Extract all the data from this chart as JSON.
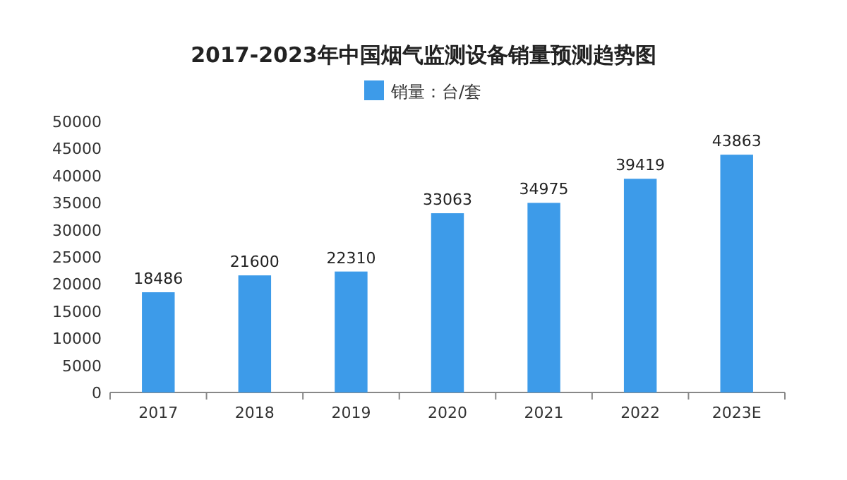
{
  "chart_data": {
    "type": "bar",
    "title": "2017-2023年中国烟气监测设备销量预测趋势图",
    "categories": [
      "2017",
      "2018",
      "2019",
      "2020",
      "2021",
      "2022",
      "2023E"
    ],
    "series": [
      {
        "name": "销量：台/套",
        "color": "#3d9be9",
        "values": [
          18486,
          21600,
          22310,
          33063,
          34975,
          39419,
          43863
        ]
      }
    ],
    "ylim": [
      0,
      50000
    ],
    "yticks": [
      0,
      5000,
      10000,
      15000,
      20000,
      25000,
      30000,
      35000,
      40000,
      45000,
      50000
    ],
    "data_labels": true,
    "legend": "top",
    "grid": false
  }
}
